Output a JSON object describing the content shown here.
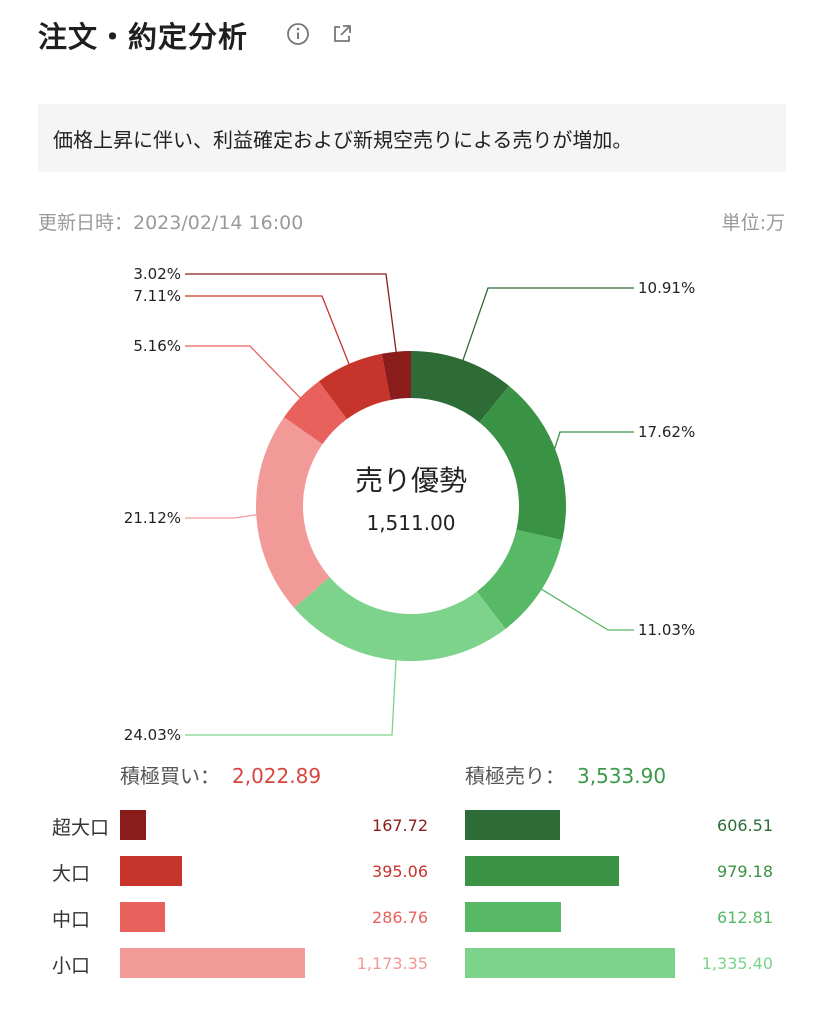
{
  "header": {
    "title": "注文・約定分析",
    "info_icon": "info-icon",
    "share_icon": "share-icon"
  },
  "summary": {
    "text": "価格上昇に伴い、利益確定および新規空売りによる売りが増加。"
  },
  "meta": {
    "updated": "更新日時：2023/02/14 16:00",
    "unit": "単位:万"
  },
  "colors": {
    "buy_super": "#8a1c1c",
    "buy_large": "#c7342b",
    "buy_mid": "#e8615c",
    "buy_small": "#f19a97",
    "sell_super": "#2d6b37",
    "sell_large": "#3a9245",
    "sell_mid": "#57b865",
    "sell_small": "#7dd38b"
  },
  "chart_data": {
    "type": "pie",
    "center": {
      "title": "売り優勢",
      "value": "1,511.00"
    },
    "slices": [
      {
        "key": "sell_super",
        "pct": 10.91,
        "label": "10.91%"
      },
      {
        "key": "sell_large",
        "pct": 17.62,
        "label": "17.62%"
      },
      {
        "key": "sell_mid",
        "pct": 11.03,
        "label": "11.03%"
      },
      {
        "key": "sell_small",
        "pct": 24.03,
        "label": "24.03%"
      },
      {
        "key": "buy_small",
        "pct": 21.12,
        "label": "21.12%"
      },
      {
        "key": "buy_mid",
        "pct": 5.16,
        "label": "5.16%"
      },
      {
        "key": "buy_large",
        "pct": 7.11,
        "label": "7.11%"
      },
      {
        "key": "buy_super",
        "pct": 3.02,
        "label": "3.02%"
      }
    ],
    "totals": {
      "buy": {
        "label": "積極買い：",
        "value": "2,022.89"
      },
      "sell": {
        "label": "積極売り：",
        "value": "3,533.90"
      }
    },
    "rows": [
      {
        "label": "超大口",
        "buy": 167.72,
        "buy_text": "167.72",
        "sell": 606.51,
        "sell_text": "606.51",
        "buy_key": "buy_super",
        "sell_key": "sell_super"
      },
      {
        "label": "大口",
        "buy": 395.06,
        "buy_text": "395.06",
        "sell": 979.18,
        "sell_text": "979.18",
        "buy_key": "buy_large",
        "sell_key": "sell_large"
      },
      {
        "label": "中口",
        "buy": 286.76,
        "buy_text": "286.76",
        "sell": 612.81,
        "sell_text": "612.81",
        "buy_key": "buy_mid",
        "sell_key": "sell_mid"
      },
      {
        "label": "小口",
        "buy": 1173.35,
        "buy_text": "1,173.35",
        "sell": 1335.4,
        "sell_text": "1,335.40",
        "buy_key": "buy_small",
        "sell_key": "sell_small"
      }
    ]
  }
}
